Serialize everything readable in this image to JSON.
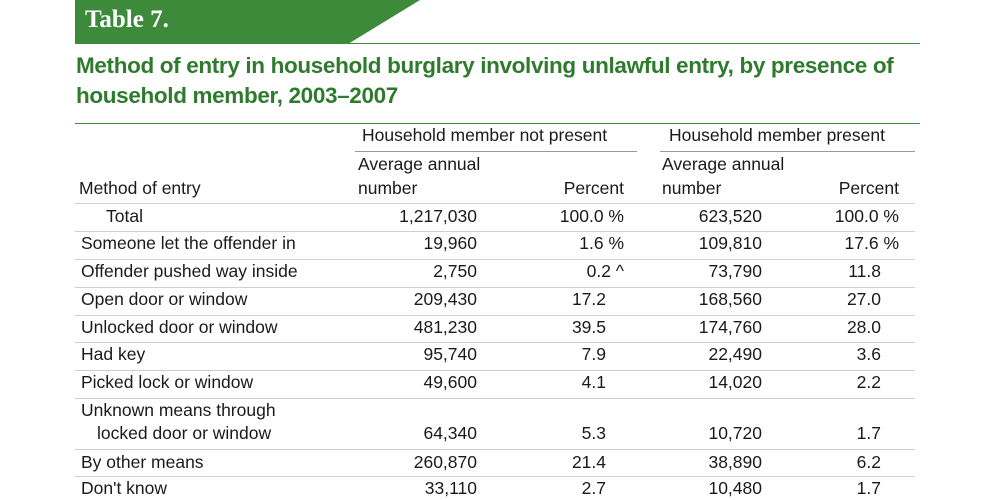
{
  "table_label": "Table 7.",
  "title_line1": "Method of entry in household burglary involving unlawful entry, by presence of",
  "title_line2": "household member, 2003–2007",
  "headers": {
    "group_not_present": "Household member not present",
    "group_present": "Household member present",
    "method_of_entry": "Method of entry",
    "avg_annual_line1": "Average annual",
    "avg_annual_line2": "number",
    "percent": "Percent"
  },
  "rows": [
    {
      "label": "Total",
      "np_number": "1,217,030",
      "np_percent": "100.0 %",
      "p_number": "623,520",
      "p_percent": "100.0 %"
    },
    {
      "label": "Someone let the offender in",
      "np_number": "19,960",
      "np_percent": "1.6 %",
      "p_number": "109,810",
      "p_percent": "17.6 %"
    },
    {
      "label": "Offender pushed way inside",
      "np_number": "2,750",
      "np_percent": "0.2 ^",
      "p_number": "73,790",
      "p_percent": "11.8"
    },
    {
      "label": "Open door or window",
      "np_number": "209,430",
      "np_percent": "17.2",
      "p_number": "168,560",
      "p_percent": "27.0"
    },
    {
      "label": "Unlocked door or window",
      "np_number": "481,230",
      "np_percent": "39.5",
      "p_number": "174,760",
      "p_percent": "28.0"
    },
    {
      "label": "Had key",
      "np_number": "95,740",
      "np_percent": "7.9",
      "p_number": "22,490",
      "p_percent": "3.6"
    },
    {
      "label": "Picked lock or window",
      "np_number": "49,600",
      "np_percent": "4.1",
      "p_number": "14,020",
      "p_percent": "2.2"
    },
    {
      "label": "Unknown means through",
      "label2": "locked door or window",
      "np_number": "64,340",
      "np_percent": "5.3",
      "p_number": "10,720",
      "p_percent": "1.7"
    },
    {
      "label": "By other means",
      "np_number": "260,870",
      "np_percent": "21.4",
      "p_number": "38,890",
      "p_percent": "6.2"
    },
    {
      "label": "Don't know",
      "np_number": "33,110",
      "np_percent": "2.7",
      "p_number": "10,480",
      "p_percent": "1.7"
    }
  ],
  "colors": {
    "accent_green": "#3c8a3a",
    "title_green": "#2f7b2d",
    "text": "#1a1a1a",
    "rule_gray": "#cfcfcf"
  }
}
